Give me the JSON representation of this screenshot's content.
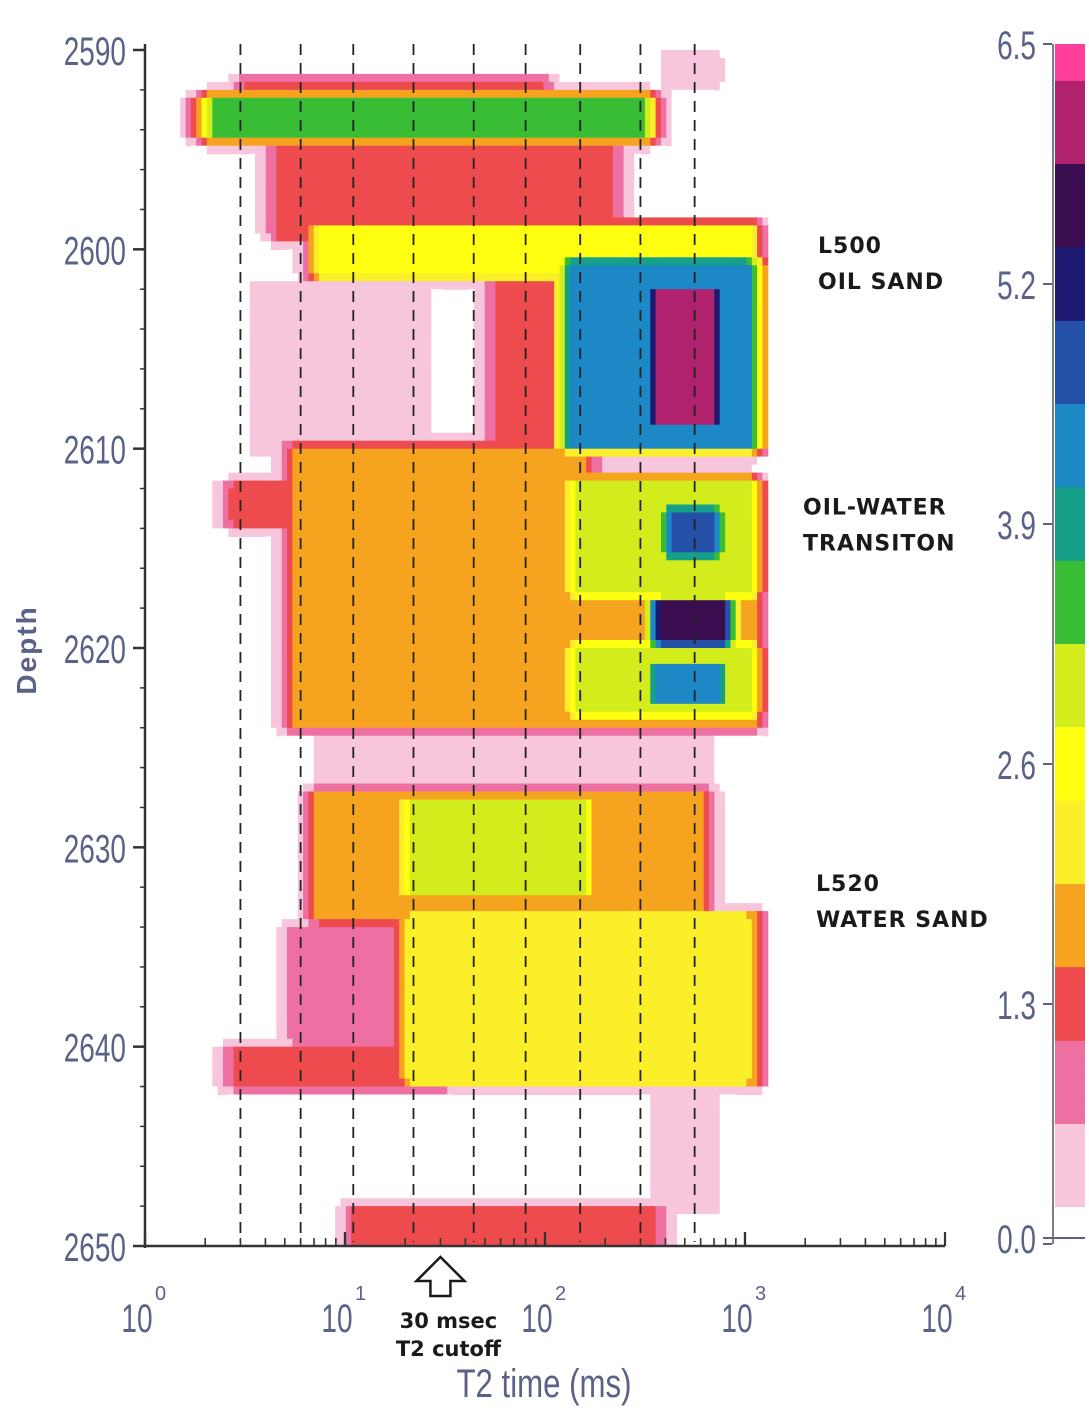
{
  "chart_data": {
    "type": "heatmap",
    "xlabel": "T2 time (ms)",
    "ylabel": "Depth",
    "x_scale": "log",
    "xlim": [
      1,
      10000
    ],
    "ylim": [
      2590,
      2650
    ],
    "x_ticks": [
      {
        "base": "10",
        "exp": "0",
        "value": 1
      },
      {
        "base": "10",
        "exp": "1",
        "value": 10
      },
      {
        "base": "10",
        "exp": "2",
        "value": 100
      },
      {
        "base": "10",
        "exp": "3",
        "value": 1000
      },
      {
        "base": "10",
        "exp": "4",
        "value": 10000
      }
    ],
    "y_ticks": [
      "2590",
      "2600",
      "2610",
      "2620",
      "2630",
      "2640",
      "2650"
    ],
    "bin_lines_ms": [
      3,
      6,
      11,
      22,
      44,
      80,
      150,
      300,
      560
    ],
    "colorbar": {
      "ticks": [
        "6.5",
        "5.2",
        "3.9",
        "2.6",
        "1.3",
        "0.0"
      ],
      "range": [
        0,
        6.5
      ],
      "colors": [
        "#ffffff",
        "#f7c6dc",
        "#ee6fa2",
        "#ee4b4f",
        "#f6a420",
        "#fbef2a",
        "#ffff10",
        "#d2ec1c",
        "#38bd35",
        "#16a08a",
        "#1c88c6",
        "#2550a8",
        "#1d1870",
        "#3a0c50",
        "#b0226e",
        "#ff3f9c"
      ]
    },
    "annotations": [
      {
        "lines": [
          "L500",
          "OIL  SAND"
        ],
        "depth": 2602
      },
      {
        "lines": [
          "OIL-WATER",
          "TRANSITON"
        ],
        "depth": 2614
      },
      {
        "lines": [
          "L520",
          "WATER  SAND"
        ],
        "depth": 2635
      }
    ],
    "cutoff": {
      "value_ms": 30,
      "lines": [
        "30  msec",
        "T2  cutoff"
      ]
    },
    "zones": [
      {
        "d0": 2592.6,
        "d1": 2594.2,
        "x0": 2.2,
        "x1": 300,
        "peak": 3.3
      },
      {
        "d0": 2591.7,
        "d1": 2592.6,
        "x0": 3.5,
        "x1": 90,
        "peak": 1.4
      },
      {
        "d0": 2594.7,
        "d1": 2599.2,
        "x0": 5,
        "x1": 200,
        "peak": 1.4
      },
      {
        "d0": 2599.0,
        "d1": 2601.2,
        "x0": 8,
        "x1": 1000,
        "peak": 2.6
      },
      {
        "d0": 2600.8,
        "d1": 2609.8,
        "x0": 140,
        "x1": 1000,
        "peak": 4.4
      },
      {
        "d0": 2602.2,
        "d1": 2608.6,
        "x0": 380,
        "x1": 660,
        "peak": 6.2
      },
      {
        "d0": 2600.8,
        "d1": 2609.8,
        "x0": 60,
        "x1": 150,
        "peak": 1.2
      },
      {
        "d0": 2602.0,
        "d1": 2610.0,
        "x0": 4,
        "x1": 22,
        "peak": 0.5
      },
      {
        "d0": 2610.0,
        "d1": 2617.5,
        "x0": 6,
        "x1": 150,
        "peak": 1.7
      },
      {
        "d0": 2612.0,
        "d1": 2613.6,
        "x0": 3,
        "x1": 12,
        "peak": 1.5
      },
      {
        "d0": 2611.8,
        "d1": 2617.2,
        "x0": 150,
        "x1": 1000,
        "peak": 3.0
      },
      {
        "d0": 2613.2,
        "d1": 2615.2,
        "x0": 440,
        "x1": 680,
        "peak": 4.6
      },
      {
        "d0": 2617.8,
        "d1": 2619.6,
        "x0": 390,
        "x1": 740,
        "peak": 5.6
      },
      {
        "d0": 2617.6,
        "d1": 2623.8,
        "x0": 6,
        "x1": 1000,
        "peak": 1.9
      },
      {
        "d0": 2620.0,
        "d1": 2623.2,
        "x0": 150,
        "x1": 1000,
        "peak": 3.0
      },
      {
        "d0": 2621.0,
        "d1": 2622.6,
        "x0": 380,
        "x1": 720,
        "peak": 4.4
      },
      {
        "d0": 2627.4,
        "d1": 2633.5,
        "x0": 8,
        "x1": 560,
        "peak": 1.9
      },
      {
        "d0": 2627.8,
        "d1": 2632.2,
        "x0": 22,
        "x1": 150,
        "peak": 2.9
      },
      {
        "d0": 2633.6,
        "d1": 2641.6,
        "x0": 22,
        "x1": 1000,
        "peak": 2.3
      },
      {
        "d0": 2634.2,
        "d1": 2639.6,
        "x0": 6,
        "x1": 22,
        "peak": 0.9
      },
      {
        "d0": 2640.3,
        "d1": 2641.8,
        "x0": 3,
        "x1": 30,
        "peak": 1.3
      },
      {
        "d0": 2623.8,
        "d1": 2626.8,
        "x0": 8,
        "x1": 600,
        "peak": 0.35
      },
      {
        "d0": 2648.3,
        "d1": 2650.0,
        "x0": 12,
        "x1": 330,
        "peak": 1.3
      },
      {
        "d0": 2590.5,
        "d1": 2591.5,
        "x0": 450,
        "x1": 650,
        "peak": 0.45
      },
      {
        "d0": 2642.0,
        "d1": 2648.0,
        "x0": 400,
        "x1": 650,
        "peak": 0.35
      }
    ]
  }
}
